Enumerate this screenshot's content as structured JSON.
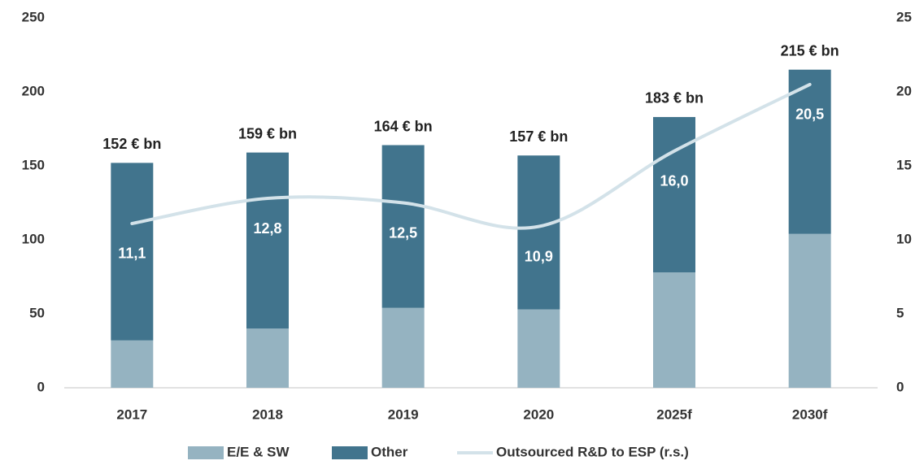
{
  "chart_data": {
    "type": "bar-line",
    "categories": [
      "2017",
      "2018",
      "2019",
      "2020",
      "2025f",
      "2030f"
    ],
    "series": [
      {
        "name": "E/E & SW",
        "color": "#95b3c1",
        "values": [
          32,
          40,
          54,
          53,
          78,
          104
        ]
      },
      {
        "name": "Other",
        "color": "#41748d",
        "values": [
          120,
          119,
          110,
          104,
          105,
          111
        ]
      },
      {
        "name": "Outsourced R&D to ESP (r.s.)",
        "color": "#d3e2e9",
        "axis": "y2",
        "type": "line",
        "values": [
          11.1,
          12.8,
          12.5,
          10.9,
          16.0,
          20.5
        ],
        "value_labels": [
          "11,1",
          "12,8",
          "12,5",
          "10,9",
          "16,0",
          "20,5"
        ]
      }
    ],
    "totals": [
      152,
      159,
      164,
      157,
      183,
      215
    ],
    "total_labels": [
      "152 € bn",
      "159 € bn",
      "164 € bn",
      "157 € bn",
      "183 € bn",
      "215 € bn"
    ],
    "ylim": [
      0,
      250
    ],
    "yticks": [
      0,
      50,
      100,
      150,
      200,
      250
    ],
    "y2lim": [
      0,
      25
    ],
    "y2ticks": [
      0,
      5,
      10,
      15,
      20,
      25
    ],
    "legend": "bottom"
  }
}
